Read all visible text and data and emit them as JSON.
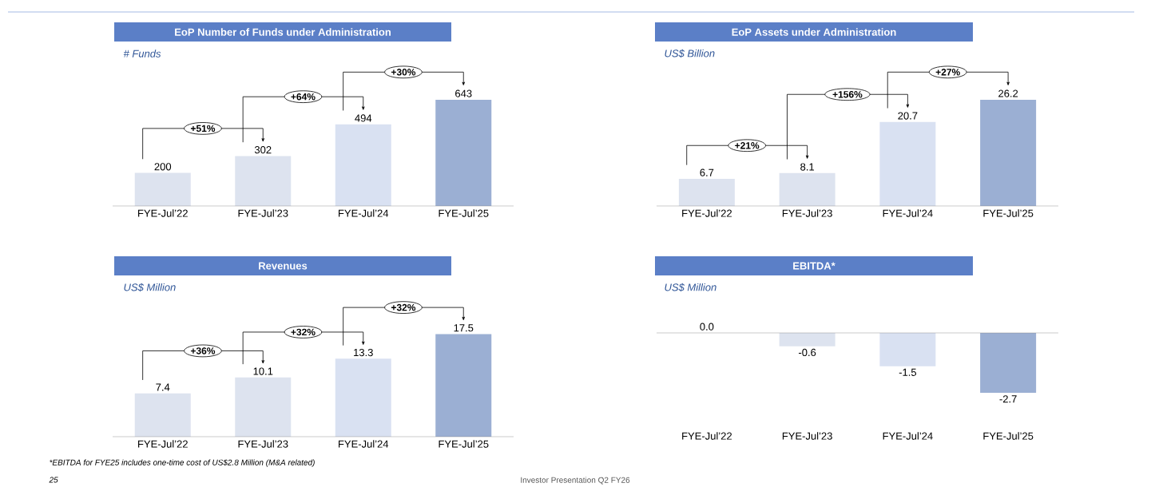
{
  "chart_data": [
    {
      "type": "bar",
      "title": "EoP Number of Funds under Administration",
      "subtitle": "# Funds",
      "categories": [
        "FYE-Jul’22",
        "FYE-Jul’23",
        "FYE-Jul’24",
        "FYE-Jul’25"
      ],
      "values": [
        200,
        302,
        494,
        643
      ],
      "value_labels": [
        "200",
        "302",
        "494",
        "643"
      ],
      "colors": [
        "#dde3ef",
        "#dde3ef",
        "#d9e1f2",
        "#9bafd3"
      ],
      "annotations": [
        "+51%",
        "+64%",
        "+30%"
      ]
    },
    {
      "type": "bar",
      "title": "EoP Assets under Administration",
      "subtitle": "US$ Billion",
      "categories": [
        "FYE-Jul’22",
        "FYE-Jul’23",
        "FYE-Jul’24",
        "FYE-Jul’25"
      ],
      "values": [
        6.7,
        8.1,
        20.7,
        26.2
      ],
      "value_labels": [
        "6.7",
        "8.1",
        "20.7",
        "26.2"
      ],
      "colors": [
        "#dde3ef",
        "#dde3ef",
        "#d9e1f2",
        "#9bafd3"
      ],
      "annotations": [
        "+21%",
        "+156%",
        "+27%"
      ]
    },
    {
      "type": "bar",
      "title": "Revenues",
      "subtitle": "US$ Million",
      "categories": [
        "FYE-Jul’22",
        "FYE-Jul’23",
        "FYE-Jul’24",
        "FYE-Jul’25"
      ],
      "values": [
        7.4,
        10.1,
        13.3,
        17.5
      ],
      "value_labels": [
        "7.4",
        "10.1",
        "13.3",
        "17.5"
      ],
      "colors": [
        "#dde3ef",
        "#dde3ef",
        "#d9e1f2",
        "#9bafd3"
      ],
      "annotations": [
        "+36%",
        "+32%",
        "+32%"
      ]
    },
    {
      "type": "bar",
      "title": "EBITDA*",
      "subtitle": "US$ Million",
      "categories": [
        "FYE-Jul’22",
        "FYE-Jul’23",
        "FYE-Jul’24",
        "FYE-Jul’25"
      ],
      "values": [
        0.0,
        -0.6,
        -1.5,
        -2.7
      ],
      "value_labels": [
        "0.0",
        "-0.6",
        "-1.5",
        "-2.7"
      ],
      "colors": [
        "#dde3ef",
        "#dde3ef",
        "#d9e1f2",
        "#9bafd3"
      ],
      "annotations": [
        "*EBITDA for FYE25 includes one-time cost of US$2.8 Million (M&A related)",
        "25",
        "Investor Presentation Q2 FY26"
      ]
    }
  ]
}
